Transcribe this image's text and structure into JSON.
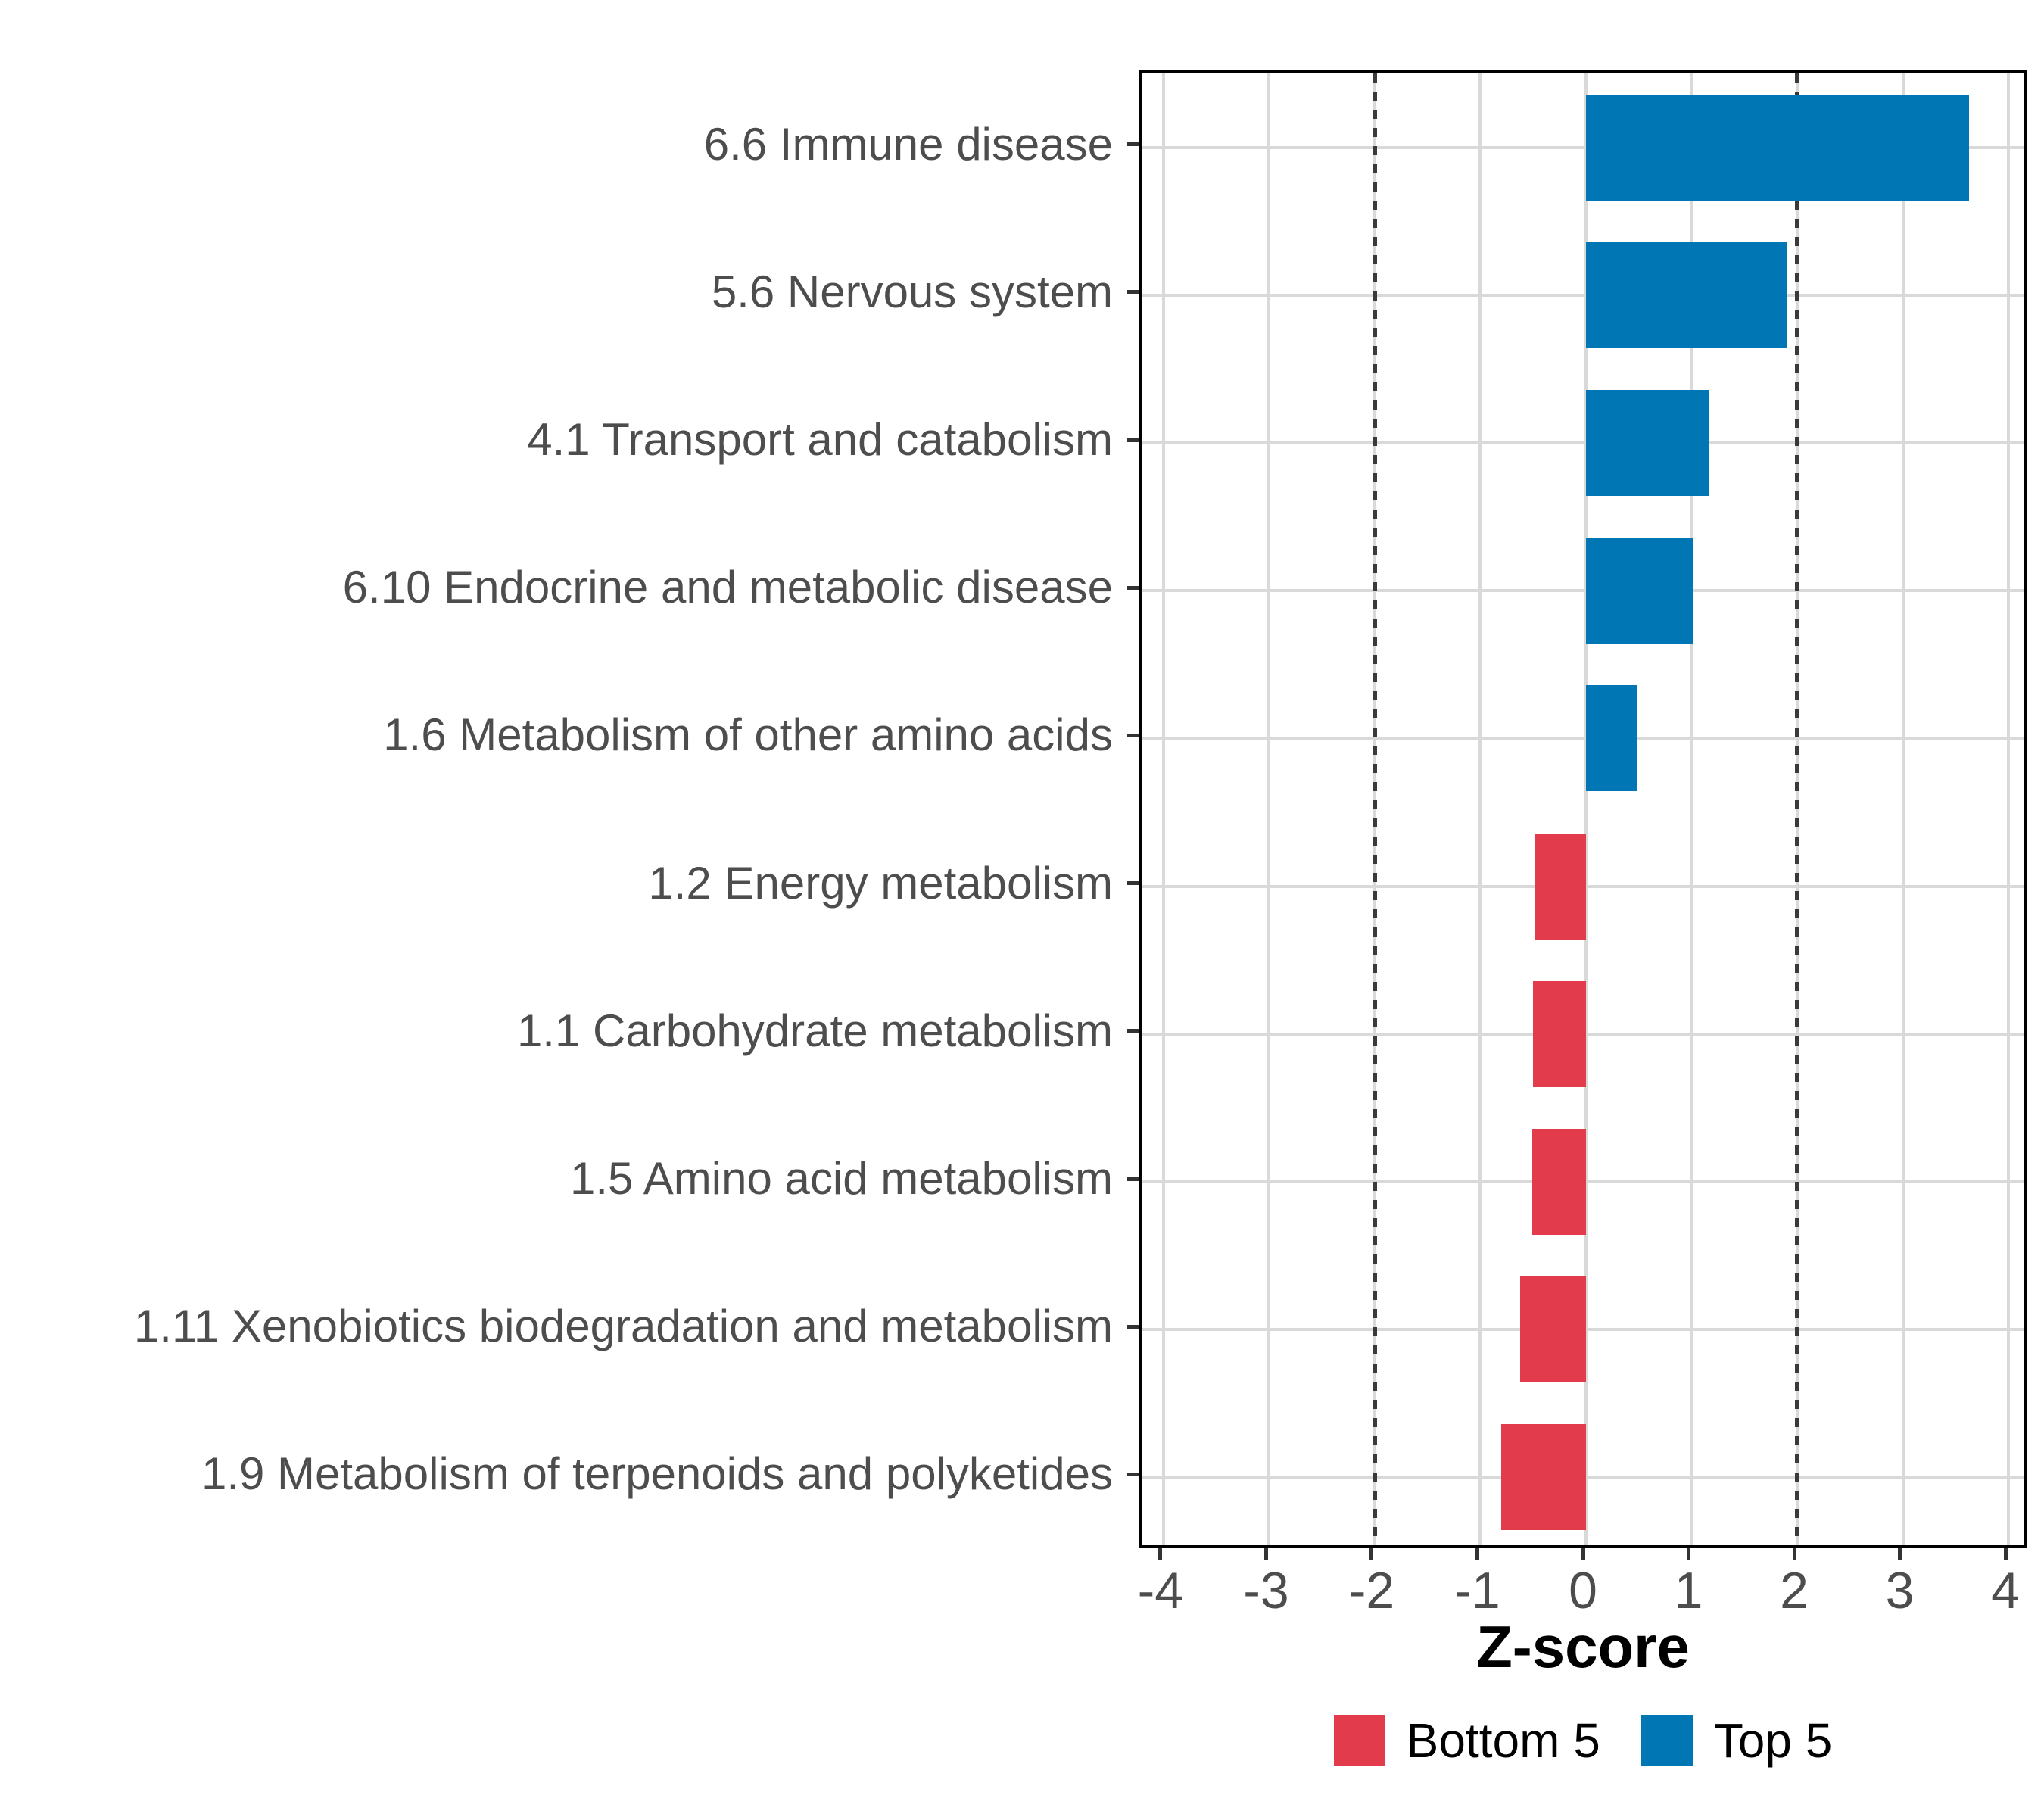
{
  "chart_data": {
    "type": "bar",
    "orientation": "horizontal",
    "title": "",
    "xlabel": "Z-score",
    "ylabel": "",
    "xlim": [
      -4.2,
      4.2
    ],
    "x_ticks": [
      -4,
      -3,
      -2,
      -1,
      0,
      1,
      2,
      3,
      4
    ],
    "grid": true,
    "legend_position": "bottom",
    "reference_lines": {
      "values": [
        -2,
        2
      ],
      "style": "dotted",
      "color": "#3a3a3a"
    },
    "categories": [
      "6.6 Immune disease",
      "5.6 Nervous system",
      "4.1 Transport and catabolism",
      "6.10 Endocrine and metabolic disease",
      "1.6 Metabolism of other amino acids",
      "1.2 Energy metabolism",
      "1.1 Carbohydrate metabolism",
      "1.5 Amino acid metabolism",
      "1.11 Xenobiotics biodegradation and metabolism",
      "1.9 Metabolism of terpenoids and polyketides"
    ],
    "values": [
      3.63,
      1.9,
      1.16,
      1.02,
      0.48,
      -0.49,
      -0.5,
      -0.51,
      -0.62,
      -0.8
    ],
    "groups": [
      "Top 5",
      "Top 5",
      "Top 5",
      "Top 5",
      "Top 5",
      "Bottom 5",
      "Bottom 5",
      "Bottom 5",
      "Bottom 5",
      "Bottom 5"
    ],
    "legend": [
      {
        "label": "Bottom 5",
        "color": "#E23B4C"
      },
      {
        "label": "Top 5",
        "color": "#0077B4"
      }
    ]
  },
  "colors": {
    "top5": "#0077B4",
    "bottom5": "#E23B4C",
    "grid": "#d9d9d9",
    "panel_border": "#000000",
    "tick_text": "#4d4d4d",
    "axis_title_text": "#000000"
  }
}
